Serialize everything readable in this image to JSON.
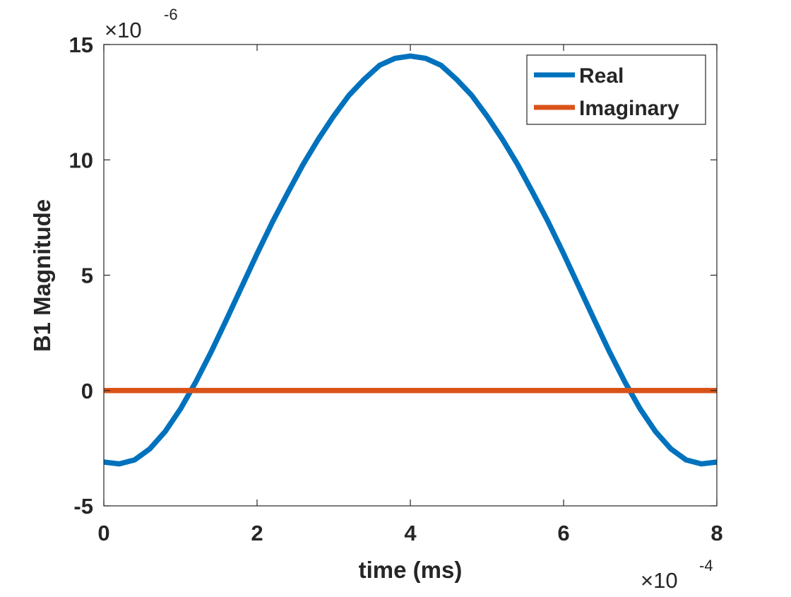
{
  "chart_data": {
    "type": "line",
    "title": "",
    "xlabel": "time (ms)",
    "ylabel": "B1 Magnitude",
    "x_multiplier_label": "×10",
    "x_multiplier_exponent": "-4",
    "y_multiplier_label": "×10",
    "y_multiplier_exponent": "-6",
    "xlim": [
      0,
      8
    ],
    "ylim": [
      -5,
      15
    ],
    "xticks": [
      0,
      2,
      4,
      6,
      8
    ],
    "xtick_labels": [
      "0",
      "2",
      "4",
      "6",
      "8"
    ],
    "yticks": [
      -5,
      0,
      5,
      10,
      15
    ],
    "ytick_labels": [
      "-5",
      "0",
      "5",
      "10",
      "15"
    ],
    "grid": false,
    "legend_position": "top-right",
    "series": [
      {
        "name": "Real",
        "color": "#0072BD",
        "x": [
          0,
          0.2,
          0.4,
          0.6,
          0.8,
          1.0,
          1.2,
          1.4,
          1.6,
          1.8,
          2.0,
          2.2,
          2.4,
          2.6,
          2.8,
          3.0,
          3.2,
          3.4,
          3.6,
          3.8,
          4.0,
          4.2,
          4.4,
          4.6,
          4.8,
          5.0,
          5.2,
          5.4,
          5.6,
          5.8,
          6.0,
          6.2,
          6.4,
          6.6,
          6.8,
          7.0,
          7.2,
          7.4,
          7.6,
          7.8,
          8.0
        ],
        "values": [
          -3.1,
          -3.18,
          -3.01,
          -2.53,
          -1.78,
          -0.8,
          0.37,
          1.67,
          3.07,
          4.5,
          5.93,
          7.3,
          8.57,
          9.8,
          10.9,
          11.9,
          12.8,
          13.5,
          14.1,
          14.4,
          14.5,
          14.4,
          14.1,
          13.5,
          12.8,
          11.9,
          10.9,
          9.8,
          8.57,
          7.3,
          5.93,
          4.5,
          3.07,
          1.67,
          0.37,
          -0.8,
          -1.78,
          -2.53,
          -3.01,
          -3.18,
          -3.1
        ]
      },
      {
        "name": "Imaginary",
        "color": "#D95319",
        "x": [
          0,
          8
        ],
        "values": [
          0,
          0
        ]
      }
    ]
  }
}
